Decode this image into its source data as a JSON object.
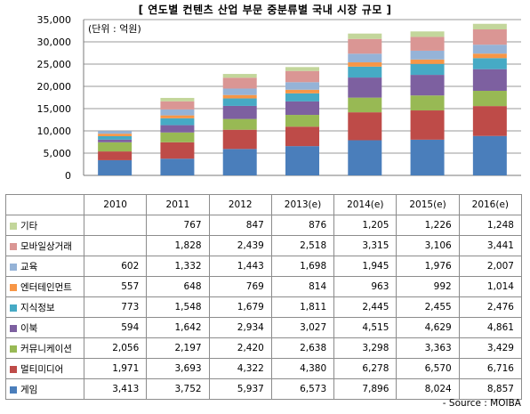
{
  "chart_data": {
    "type": "bar",
    "stacked": true,
    "title": "[ 연도별 컨텐츠 산업 부문 중분류별 국내 시장 규모 ]",
    "unit_label": "(단위 : 억원)",
    "categories": [
      "2010",
      "2011",
      "2012",
      "2013(e)",
      "2014(e)",
      "2015(e)",
      "2016(e)"
    ],
    "ylim": [
      0,
      35000
    ],
    "yticks": [
      "0",
      "5,000",
      "10,000",
      "15,000",
      "20,000",
      "25,000",
      "30,000",
      "35,000"
    ],
    "ytick_values": [
      0,
      5000,
      10000,
      15000,
      20000,
      25000,
      30000,
      35000
    ],
    "grid": true,
    "series": [
      {
        "name": "게임",
        "color": "#4a7ebb",
        "values": [
          3413,
          3752,
          5937,
          6573,
          7896,
          8024,
          8857
        ],
        "labels": [
          "3,413",
          "3,752",
          "5,937",
          "6,573",
          "7,896",
          "8,024",
          "8,857"
        ]
      },
      {
        "name": "멀티미디어",
        "color": "#be4b48",
        "values": [
          1971,
          3693,
          4322,
          4380,
          6278,
          6570,
          6716
        ],
        "labels": [
          "1,971",
          "3,693",
          "4,322",
          "4,380",
          "6,278",
          "6,570",
          "6,716"
        ]
      },
      {
        "name": "커뮤니케이션",
        "color": "#98b954",
        "values": [
          2056,
          2197,
          2420,
          2638,
          3298,
          3363,
          3429
        ],
        "labels": [
          "2,056",
          "2,197",
          "2,420",
          "2,638",
          "3,298",
          "3,363",
          "3,429"
        ]
      },
      {
        "name": "이북",
        "color": "#7d60a0",
        "values": [
          594,
          1642,
          2934,
          3027,
          4515,
          4629,
          4861
        ],
        "labels": [
          "594",
          "1,642",
          "2,934",
          "3,027",
          "4,515",
          "4,629",
          "4,861"
        ]
      },
      {
        "name": "지식정보",
        "color": "#46aac5",
        "values": [
          773,
          1548,
          1679,
          1811,
          2445,
          2455,
          2476
        ],
        "labels": [
          "773",
          "1,548",
          "1,679",
          "1,811",
          "2,445",
          "2,455",
          "2,476"
        ]
      },
      {
        "name": "엔터테인먼트",
        "color": "#f79646",
        "values": [
          557,
          648,
          769,
          814,
          963,
          992,
          1014
        ],
        "labels": [
          "557",
          "648",
          "769",
          "814",
          "963",
          "992",
          "1,014"
        ]
      },
      {
        "name": "교육",
        "color": "#95b3d7",
        "values": [
          602,
          1332,
          1443,
          1698,
          1945,
          1976,
          2007
        ],
        "labels": [
          "602",
          "1,332",
          "1,443",
          "1,698",
          "1,945",
          "1,976",
          "2,007"
        ]
      },
      {
        "name": "모바일상거래",
        "color": "#da9694",
        "values": [
          null,
          1828,
          2439,
          2518,
          3315,
          3106,
          3441
        ],
        "labels": [
          "",
          "1,828",
          "2,439",
          "2,518",
          "3,315",
          "3,106",
          "3,441"
        ]
      },
      {
        "name": "기타",
        "color": "#c3d69b",
        "values": [
          null,
          767,
          847,
          876,
          1205,
          1226,
          1248
        ],
        "labels": [
          "",
          "767",
          "847",
          "876",
          "1,205",
          "1,226",
          "1,248"
        ]
      }
    ],
    "source": "- Source : MOIBA"
  }
}
